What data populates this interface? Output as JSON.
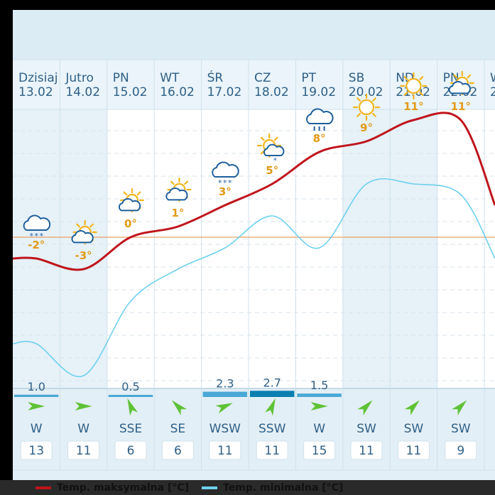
{
  "chart_data": {
    "type": "line",
    "days": [
      {
        "name": "Dzisiaj",
        "date": "13.02",
        "icon": "cloud-snow-icon",
        "max": -2,
        "min": -10,
        "precip": 1.0,
        "wind_dir": "W",
        "wind_speed": 13
      },
      {
        "name": "Jutro",
        "date": "14.02",
        "icon": "sun-cloud-icon",
        "max": -3,
        "min": -13,
        "precip": null,
        "wind_dir": "W",
        "wind_speed": 11
      },
      {
        "name": "PN",
        "date": "15.02",
        "icon": "sun-cloud-icon",
        "max": 0,
        "min": -6,
        "precip": 0.5,
        "wind_dir": "SSE",
        "wind_speed": 6
      },
      {
        "name": "WT",
        "date": "16.02",
        "icon": "sun-cloud-icon",
        "max": 1,
        "min": -3,
        "precip": null,
        "wind_dir": "SE",
        "wind_speed": 6
      },
      {
        "name": "ŚR",
        "date": "17.02",
        "icon": "cloud-snow-icon",
        "max": 3,
        "min": -1,
        "precip": 2.3,
        "wind_dir": "WSW",
        "wind_speed": 11
      },
      {
        "name": "CZ",
        "date": "18.02",
        "icon": "sun-cloud-snow-icon",
        "max": 5,
        "min": 2,
        "precip": 2.7,
        "wind_dir": "SSW",
        "wind_speed": 11
      },
      {
        "name": "PT",
        "date": "19.02",
        "icon": "cloud-rain-icon",
        "max": 8,
        "min": -1,
        "precip": 1.5,
        "wind_dir": "W",
        "wind_speed": 15
      },
      {
        "name": "SB",
        "date": "20.02",
        "icon": "sun-icon",
        "max": 9,
        "min": 5,
        "precip": null,
        "wind_dir": "SW",
        "wind_speed": 11
      },
      {
        "name": "ND",
        "date": "21.02",
        "icon": "sun-icon",
        "max": 11,
        "min": 5,
        "precip": null,
        "wind_dir": "SW",
        "wind_speed": 11
      },
      {
        "name": "PN",
        "date": "22.02",
        "icon": "sun-cloud-icon",
        "max": 11,
        "min": 4,
        "precip": null,
        "wind_dir": "SW",
        "wind_speed": 9
      }
    ],
    "next_day_name_partial": "W",
    "next_day_date_partial": "2",
    "series": [
      {
        "name": "Temp. maksymalna [°C]",
        "color": "#c0141c"
      },
      {
        "name": "Temp. minimalna [°C]",
        "color": "#6fd0ee"
      }
    ],
    "precip_color_light": "#4aa8d6",
    "precip_color_dark": "#0b7fb0",
    "zero_line_color": "#e8a06a",
    "ylim": [
      -15,
      14
    ]
  },
  "legend": {
    "max_label": "Temp. maksymalna [°C]",
    "min_label": "Temp. minimalna [°C]"
  }
}
